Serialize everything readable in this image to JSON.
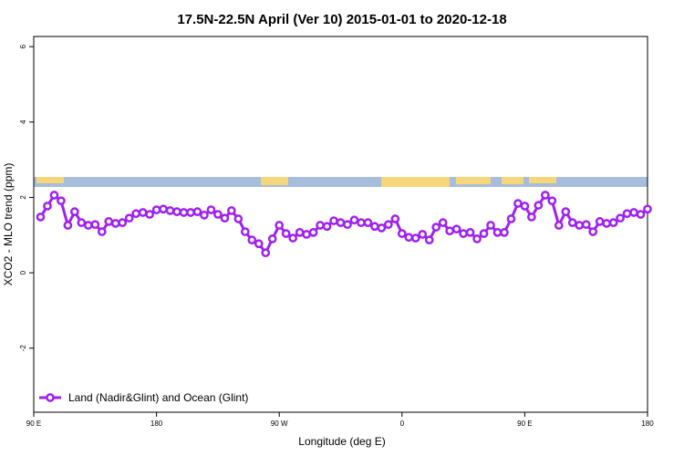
{
  "chart_data": {
    "type": "line",
    "title": "17.5N-22.5N April (Ver 10)   2015-01-01 to 2020-12-18",
    "xlabel": "Longitude (deg E)",
    "ylabel": "XCO2 - MLO trend (ppm)",
    "xlim": [
      90,
      540
    ],
    "ylim": [
      -3.7,
      6.27
    ],
    "xticks": [
      {
        "value": 90,
        "label": "90 E"
      },
      180,
      {
        "value": 270,
        "label": "90 W"
      },
      {
        "value": 360,
        "label": "0"
      },
      {
        "value": 450,
        "label": "90 E"
      },
      {
        "value": 540,
        "label": "180"
      }
    ],
    "yticks": [
      -2,
      0,
      2,
      4,
      6
    ],
    "legend": "bottom-left",
    "x": [
      95,
      100,
      105,
      110,
      115,
      120,
      125,
      130,
      135,
      140,
      145,
      150,
      155,
      160,
      165,
      170,
      175,
      180,
      185,
      190,
      195,
      200,
      205,
      210,
      215,
      220,
      225,
      230,
      235,
      240,
      245,
      250,
      255,
      260,
      265,
      270,
      275,
      280,
      285,
      290,
      295,
      300,
      305,
      310,
      315,
      320,
      325,
      330,
      335,
      340,
      345,
      350,
      355,
      360,
      365,
      370,
      375,
      380,
      385,
      390,
      395,
      400,
      405,
      410,
      415,
      420,
      425,
      430,
      435,
      440,
      445,
      450,
      455,
      460,
      465,
      470,
      475,
      480,
      485,
      490,
      495,
      500,
      505,
      510,
      515,
      520,
      525,
      530,
      535,
      540
    ],
    "series": [
      {
        "name": "Land (Nadir&Glint) and Ocean (Glint)",
        "color": "#a020f0",
        "values": [
          1.48,
          1.77,
          2.06,
          1.91,
          1.26,
          1.62,
          1.33,
          1.26,
          1.28,
          1.09,
          1.36,
          1.31,
          1.33,
          1.45,
          1.57,
          1.6,
          1.55,
          1.67,
          1.69,
          1.65,
          1.62,
          1.6,
          1.6,
          1.62,
          1.53,
          1.67,
          1.55,
          1.45,
          1.65,
          1.43,
          1.09,
          0.87,
          0.77,
          0.53,
          0.9,
          1.26,
          1.04,
          0.92,
          1.07,
          1.02,
          1.07,
          1.26,
          1.23,
          1.38,
          1.33,
          1.28,
          1.4,
          1.33,
          1.33,
          1.23,
          1.19,
          1.28,
          1.43,
          1.04,
          0.94,
          0.92,
          1.02,
          0.87,
          1.21,
          1.33,
          1.11,
          1.16,
          1.04,
          1.07,
          0.9,
          1.04,
          1.26,
          1.07,
          1.07,
          1.43,
          1.84,
          1.77,
          1.48,
          1.79,
          2.06,
          1.91,
          1.26,
          1.62,
          1.33,
          1.26,
          1.28,
          1.09,
          1.36,
          1.31,
          1.33,
          1.45,
          1.57,
          1.6,
          1.55,
          1.69
        ]
      }
    ]
  }
}
